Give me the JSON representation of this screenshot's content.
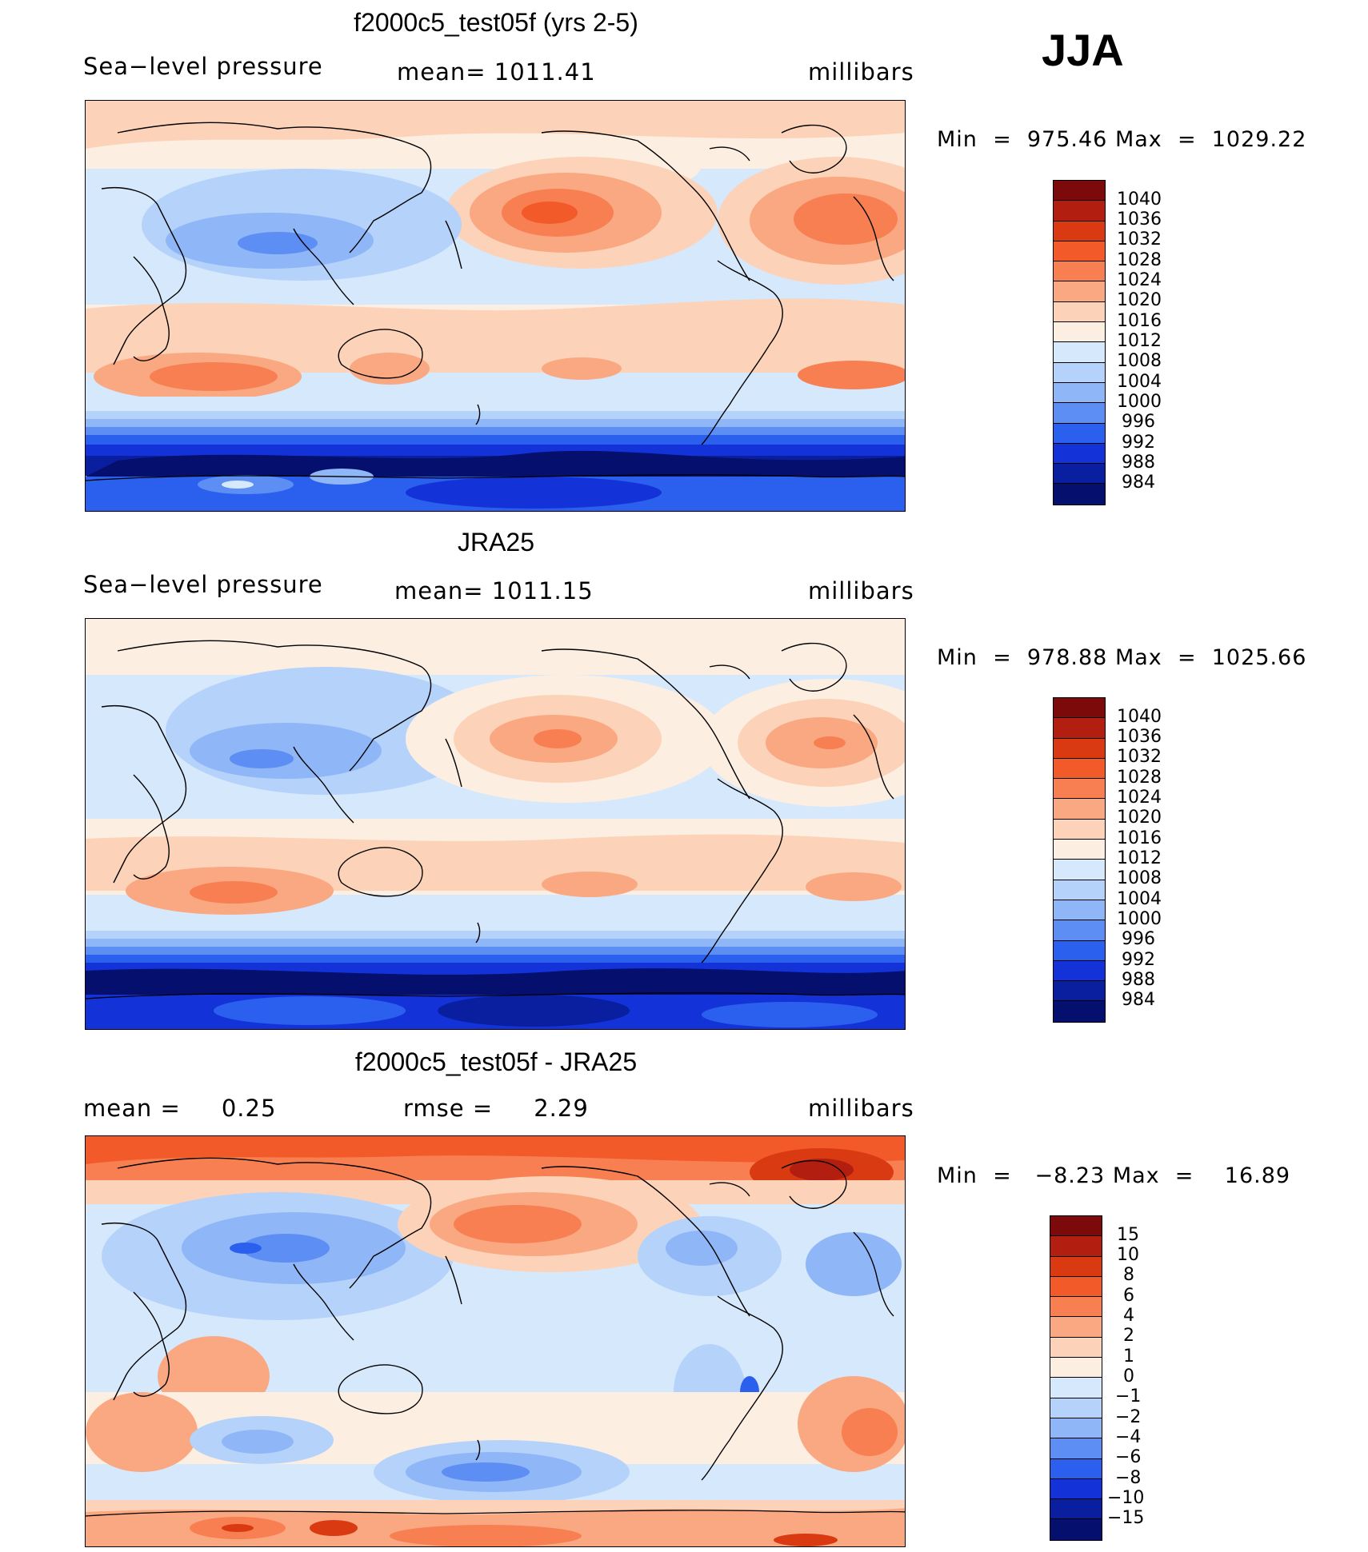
{
  "season": "JJA",
  "panels": [
    {
      "title": "f2000c5_test05f (yrs 2-5)",
      "left": "Sea−level pressure",
      "center": "mean=  1011.41",
      "right": "millibars",
      "min_label": "Min",
      "min_value": "975.46",
      "max_label": "Max",
      "max_value": "1029.22",
      "levels": [
        "1040",
        "1036",
        "1032",
        "1028",
        "1024",
        "1020",
        "1016",
        "1012",
        "1008",
        "1004",
        "1000",
        "996",
        "992",
        "988",
        "984"
      ]
    },
    {
      "title": "JRA25",
      "left": "Sea−level pressure",
      "center": "mean=  1011.15",
      "right": "millibars",
      "min_label": "Min",
      "min_value": "978.88",
      "max_label": "Max",
      "max_value": "1025.66",
      "levels": [
        "1040",
        "1036",
        "1032",
        "1028",
        "1024",
        "1020",
        "1016",
        "1012",
        "1008",
        "1004",
        "1000",
        "996",
        "992",
        "988",
        "984"
      ]
    },
    {
      "title": "f2000c5_test05f - JRA25",
      "left": "mean =     0.25",
      "center": "rmse =     2.29",
      "right": "millibars",
      "min_label": "Min",
      "min_value": "−8.23",
      "max_label": "Max",
      "max_value": "16.89",
      "levels": [
        "15",
        "10",
        "8",
        "6",
        "4",
        "2",
        "1",
        "0",
        "−1",
        "−2",
        "−4",
        "−6",
        "−8",
        "−10",
        "−15"
      ]
    }
  ],
  "colors": {
    "scale": [
      "#7d0a0a",
      "#b21e0f",
      "#d93a12",
      "#f25a2a",
      "#f77f52",
      "#f9a882",
      "#fcd3b8",
      "#fdeee2",
      "#d6e8fb",
      "#b5d2fa",
      "#8fb6f7",
      "#5d8ef4",
      "#2b60ee",
      "#1333d8",
      "#0a1fa0",
      "#050f6e"
    ]
  }
}
